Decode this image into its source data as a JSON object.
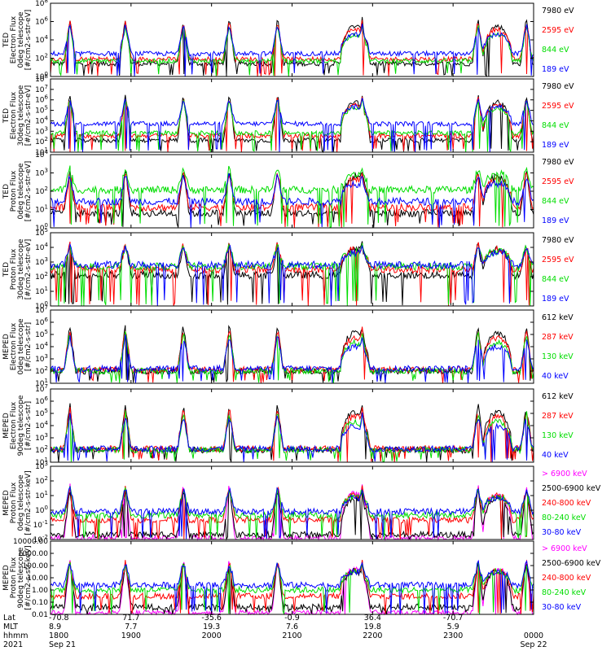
{
  "chart_data": {
    "type": "line",
    "x": {
      "start": "Sep 21 1800",
      "end": "Sep 22 0000",
      "ticks": [
        {
          "hhmm": "1800",
          "lat": "-70.8",
          "mlt": "8.9",
          "date": "Sep 21"
        },
        {
          "hhmm": "1900",
          "lat": "71.7",
          "mlt": "7.7",
          "date": ""
        },
        {
          "hhmm": "2000",
          "lat": "-35.6",
          "mlt": "19.3",
          "date": ""
        },
        {
          "hhmm": "2100",
          "lat": "-0.9",
          "mlt": "7.6",
          "date": ""
        },
        {
          "hhmm": "2200",
          "lat": "36.4",
          "mlt": "19.8",
          "date": ""
        },
        {
          "hhmm": "2300",
          "lat": "-70.7",
          "mlt": "5.9",
          "date": ""
        },
        {
          "hhmm": "0000",
          "lat": "",
          "mlt": "",
          "date": "Sep 22"
        }
      ]
    },
    "footer_row_labels": [
      "Lat",
      "MLT",
      "hhmm",
      "2021"
    ],
    "panels": [
      {
        "ylabel": [
          "TED",
          "Electron Flux",
          "0deg telescope",
          "[#/cm2-s-str-eV]"
        ],
        "scale": "log",
        "ylim": [
          1,
          100000000
        ],
        "yticks": [
          "10^0",
          "10^2",
          "10^4",
          "10^6",
          "10^8"
        ],
        "series": [
          {
            "name": "7980 eV",
            "color": "#000000",
            "level": 1.4
          },
          {
            "name": "2595 eV",
            "color": "#ff0000",
            "level": 1.9
          },
          {
            "name": "844 eV",
            "color": "#00dd00",
            "level": 1.7
          },
          {
            "name": "189 eV",
            "color": "#0000ff",
            "level": 2.5
          }
        ]
      },
      {
        "ylabel": [
          "TED",
          "Electron Flux",
          "30deg telescope",
          "[#/cm2-s-str-eV]"
        ],
        "scale": "log",
        "ylim": [
          1,
          100000000
        ],
        "yticks": [
          "10^1",
          "10^2",
          "10^3",
          "10^4",
          "10^5",
          "10^6",
          "10^7",
          "10^8"
        ],
        "series": [
          {
            "name": "7980 eV",
            "color": "#000000",
            "level": 1.3
          },
          {
            "name": "2595 eV",
            "color": "#ff0000",
            "level": 1.8
          },
          {
            "name": "844 eV",
            "color": "#00dd00",
            "level": 2.1
          },
          {
            "name": "189 eV",
            "color": "#0000ff",
            "level": 3.1
          }
        ]
      },
      {
        "ylabel": [
          "TED",
          "Proton Flux",
          "0deg telescope",
          "[#/cm2-s-str-eV]"
        ],
        "scale": "log",
        "ylim": [
          1,
          100000
        ],
        "yticks": [
          "10^0",
          "10^1",
          "10^2",
          "10^3",
          "10^4"
        ],
        "series": [
          {
            "name": "7980 eV",
            "color": "#000000",
            "level": 1.0
          },
          {
            "name": "2595 eV",
            "color": "#ff0000",
            "level": 1.4
          },
          {
            "name": "844 eV",
            "color": "#00dd00",
            "level": 2.6
          },
          {
            "name": "189 eV",
            "color": "#0000ff",
            "level": 1.8
          }
        ]
      },
      {
        "ylabel": [
          "TED",
          "Proton Flux",
          "30deg telescope",
          "[#/cm2-s-str-eV]"
        ],
        "scale": "log",
        "ylim": [
          1,
          100000
        ],
        "yticks": [
          "10^0",
          "10^1",
          "10^2",
          "10^3",
          "10^4",
          "10^5"
        ],
        "series": [
          {
            "name": "7980 eV",
            "color": "#000000",
            "level": 2.1
          },
          {
            "name": "2595 eV",
            "color": "#ff0000",
            "level": 2.5
          },
          {
            "name": "844 eV",
            "color": "#00dd00",
            "level": 2.7
          },
          {
            "name": "189 eV",
            "color": "#0000ff",
            "level": 2.8
          }
        ]
      },
      {
        "ylabel": [
          "MEPED",
          "Electron Flux",
          "0deg telescope",
          "[#/cm2-s-str]"
        ],
        "scale": "log",
        "ylim": [
          10,
          10000000
        ],
        "yticks": [
          "10^1",
          "10^2",
          "10^3",
          "10^4",
          "10^5",
          "10^6",
          "10^7"
        ],
        "series": [
          {
            "name": "612 keV",
            "color": "#000000",
            "level": 2.0
          },
          {
            "name": "287 keV",
            "color": "#ff0000",
            "level": 2.1
          },
          {
            "name": "130 keV",
            "color": "#00dd00",
            "level": 2.0
          },
          {
            "name": "40 keV",
            "color": "#0000ff",
            "level": 2.2
          }
        ]
      },
      {
        "ylabel": [
          "MEPED",
          "Electron Flux",
          "90deg telescope",
          "[#/cm2-s-str]"
        ],
        "scale": "log",
        "ylim": [
          10,
          10000000
        ],
        "yticks": [
          "10^1",
          "10^2",
          "10^3",
          "10^4",
          "10^5",
          "10^6",
          "10^7"
        ],
        "series": [
          {
            "name": "612 keV",
            "color": "#000000",
            "level": 2.0
          },
          {
            "name": "287 keV",
            "color": "#ff0000",
            "level": 2.1
          },
          {
            "name": "130 keV",
            "color": "#00dd00",
            "level": 2.0
          },
          {
            "name": "40 keV",
            "color": "#0000ff",
            "level": 2.1
          }
        ]
      },
      {
        "ylabel": [
          "MEPED",
          "Proton Flux",
          "0deg telescope",
          "[#/cm2-s-str-keV]"
        ],
        "scale": "log",
        "ylim": [
          0.01,
          10000
        ],
        "yticks": [
          "10^-2",
          "10^-1",
          "10^0",
          "10^1",
          "10^2",
          "10^3"
        ],
        "series": [
          {
            "name": "> 6900 keV",
            "color": "#ff00ff",
            "level": -1.9
          },
          {
            "name": "2500-6900 keV",
            "color": "#000000",
            "level": -1.6
          },
          {
            "name": "240-800 keV",
            "color": "#ff0000",
            "level": -0.4
          },
          {
            "name": "80-240 keV",
            "color": "#00dd00",
            "level": 0.0
          },
          {
            "name": "30-80 keV",
            "color": "#0000ff",
            "level": 0.3
          }
        ]
      },
      {
        "ylabel": [
          "MEPED",
          "Proton Flux",
          "90deg telescope",
          "[#/cm2-s-str-keV]"
        ],
        "scale": "log",
        "ylim": [
          0.01,
          10000
        ],
        "yticks": [
          "0.01",
          "0.10",
          "1.00",
          "10.00",
          "100.00",
          "1000.00",
          "10000.00"
        ],
        "series": [
          {
            "name": "> 6900 keV",
            "color": "#ff00ff",
            "level": -1.9
          },
          {
            "name": "2500-6900 keV",
            "color": "#000000",
            "level": -1.4
          },
          {
            "name": "240-800 keV",
            "color": "#ff0000",
            "level": -0.5
          },
          {
            "name": "80-240 keV",
            "color": "#00dd00",
            "level": 0.0
          },
          {
            "name": "30-80 keV",
            "color": "#0000ff",
            "level": 0.4
          }
        ]
      }
    ]
  }
}
